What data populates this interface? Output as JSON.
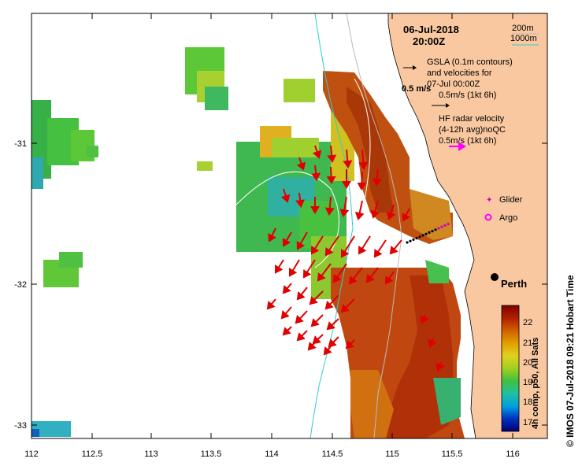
{
  "map": {
    "date": "06-Jul-2018",
    "time": "20:00Z",
    "depth_legend": [
      "200m",
      "1000m"
    ],
    "gsla_note": [
      "GSLA (0.1m contours)",
      "and velocities for",
      "07-Jul 00:00Z",
      "0.5m/s (1kt 6h)"
    ],
    "scale_arrow_label": "0.5 m/s",
    "hf_note": [
      "HF radar velocity",
      "(4-12h avg)noQC",
      "0.5m/s (1kt 6h)"
    ],
    "glider_label": "Glider",
    "argo_label": "Argo",
    "city_label": "Perth",
    "x_ticks": [
      "112",
      "112.5",
      "113",
      "113.5",
      "114",
      "114.5",
      "115",
      "115.5",
      "116"
    ],
    "y_ticks": [
      "-31",
      "-32",
      "-33"
    ],
    "colorbar_ticks": [
      "22",
      "21",
      "20",
      "19",
      "18",
      "17"
    ],
    "colorbar_label": "4h comp, p50, All Sats",
    "credit": "© IMOS 07-Jul-2018 09:21 Hobart Time",
    "colors": {
      "land": "#f9c8a0",
      "hf_arrow": "#ff00ff",
      "velocity_arrow": "#e00000",
      "contour_200m": "#bbbbbb",
      "contour_1000m": "#33cccc",
      "glider": "#cc00cc"
    },
    "colorbar_gradient": [
      "#000070",
      "#0030c0",
      "#00a0e0",
      "#20c0a0",
      "#40c040",
      "#a0d020",
      "#e0d020",
      "#e0a000",
      "#d06000",
      "#b02000",
      "#800000"
    ]
  }
}
